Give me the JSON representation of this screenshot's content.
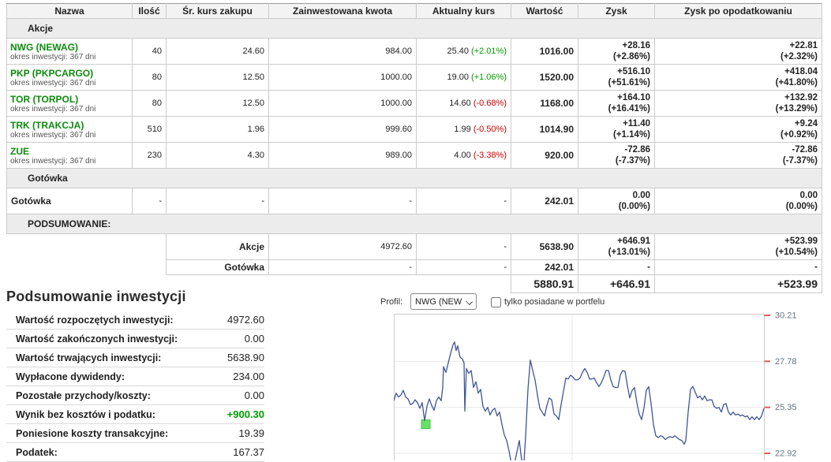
{
  "colors": {
    "up": "#009c00",
    "down": "#cc0000",
    "ticker": "#0d8c0d",
    "line": "#3f5694",
    "grid": "#e8e8e8",
    "plot_border": "#cccccc",
    "tick": "#e05b5b",
    "axis_label": "#66757f",
    "marker_fill": "#69e066",
    "marker_border": "#44c244"
  },
  "table": {
    "headers": [
      "Nazwa",
      "Ilość",
      "Śr. kurs zakupu",
      "Zainwestowana kwota",
      "Aktualny kurs",
      "Wartość",
      "Zysk",
      "Zysk po opodatkowaniu"
    ],
    "sections": {
      "akcje": "Akcje",
      "gotowka": "Gotówka",
      "podsumowanie": "PODSUMOWANIE:"
    },
    "rows": [
      {
        "ticker": "NWG (NEWAG)",
        "period": "okres inwestycji: 367 dni",
        "qty": "40",
        "avg": "24.60",
        "invested": "984.00",
        "kurs": "25.40",
        "kurs_chg": "(+2.01%)",
        "kurs_dir": "up",
        "value": "1016.00",
        "profit": "+28.16",
        "profit_pct": "(+2.86%)",
        "profit_dir": "up",
        "tax": "+22.81",
        "tax_pct": "(+2.32%)",
        "tax_dir": "up"
      },
      {
        "ticker": "PKP (PKPCARGO)",
        "period": "okres inwestycji: 367 dni",
        "qty": "80",
        "avg": "12.50",
        "invested": "1000.00",
        "kurs": "19.00",
        "kurs_chg": "(+1.06%)",
        "kurs_dir": "up",
        "value": "1520.00",
        "profit": "+516.10",
        "profit_pct": "(+51.61%)",
        "profit_dir": "up",
        "tax": "+418.04",
        "tax_pct": "(+41.80%)",
        "tax_dir": "up"
      },
      {
        "ticker": "TOR (TORPOL)",
        "period": "okres inwestycji: 367 dni",
        "qty": "80",
        "avg": "12.50",
        "invested": "1000.00",
        "kurs": "14.60",
        "kurs_chg": "(-0.68%)",
        "kurs_dir": "down",
        "value": "1168.00",
        "profit": "+164.10",
        "profit_pct": "(+16.41%)",
        "profit_dir": "up",
        "tax": "+132.92",
        "tax_pct": "(+13.29%)",
        "tax_dir": "up"
      },
      {
        "ticker": "TRK (TRAKCJA)",
        "period": "okres inwestycji: 367 dni",
        "qty": "510",
        "avg": "1.96",
        "invested": "999.60",
        "kurs": "1.99",
        "kurs_chg": "(-0.50%)",
        "kurs_dir": "down",
        "value": "1014.90",
        "profit": "+11.40",
        "profit_pct": "(+1.14%)",
        "profit_dir": "up",
        "tax": "+9.24",
        "tax_pct": "(+0.92%)",
        "tax_dir": "up"
      },
      {
        "ticker": "ZUE",
        "period": "okres inwestycji: 367 dni",
        "qty": "230",
        "avg": "4.30",
        "invested": "989.00",
        "kurs": "4.00",
        "kurs_chg": "(-3.38%)",
        "kurs_dir": "down",
        "value": "920.00",
        "profit": "-72.86",
        "profit_pct": "(-7.37%)",
        "profit_dir": "down",
        "tax": "-72.86",
        "tax_pct": "(-7.37%)",
        "tax_dir": "down"
      }
    ],
    "cash_row": {
      "name": "Gotówka",
      "qty": "-",
      "avg": "-",
      "invested": "-",
      "kurs": "-",
      "value": "242.01",
      "profit": "0.00",
      "profit_pct": "(0.00%)",
      "tax": "0.00",
      "tax_pct": "(0.00%)"
    },
    "summary_rows": [
      {
        "label": "Akcje",
        "invested": "4972.60",
        "kurs": "-",
        "value": "5638.90",
        "profit": "+646.91",
        "profit_pct": "(+13.01%)",
        "profit_dir": "up",
        "tax": "+523.99",
        "tax_pct": "(+10.54%)",
        "tax_dir": "up"
      },
      {
        "label": "Gotówka",
        "invested": "-",
        "kurs": "-",
        "value": "242.01",
        "profit": "-",
        "profit_pct": "",
        "profit_dir": "flat",
        "tax": "-",
        "tax_pct": "",
        "tax_dir": "flat"
      }
    ],
    "total_row": {
      "value": "5880.91",
      "profit": "+646.91",
      "tax": "+523.99"
    }
  },
  "summary_panel": {
    "title": "Podsumowanie inwestycji",
    "rows": [
      {
        "label": "Wartość rozpoczętych inwestycji:",
        "value": "4972.60",
        "green": false
      },
      {
        "label": "Wartość zakończonych inwestycji:",
        "value": "0.00",
        "green": false
      },
      {
        "label": "Wartość trwających inwestycji:",
        "value": "5638.90",
        "green": false
      },
      {
        "label": "Wypłacone dywidendy:",
        "value": "234.00",
        "green": false
      },
      {
        "label": "Pozostałe przychody/koszty:",
        "value": "0.00",
        "green": false
      },
      {
        "label": "Wynik bez kosztów i podatku:",
        "value": "+900.30",
        "green": true
      },
      {
        "label": "Poniesione koszty transakcyjne:",
        "value": "19.39",
        "green": false
      },
      {
        "label": "Podatek:",
        "value": "167.37",
        "green": false
      }
    ]
  },
  "chart_area": {
    "profil_label": "Profil:",
    "profil_value": "NWG (NEWA",
    "checkbox_label": "tylko posiadane w portfelu",
    "checkbox_checked": false
  },
  "chart_data": {
    "type": "line",
    "series_name": "NWG (NEWAG)",
    "y_ticks": [
      30.21,
      27.78,
      25.35,
      22.92
    ],
    "x_gridlines_frac": [
      0.482
    ],
    "grid": true,
    "legend": false,
    "marker": {
      "x_frac": 0.0864,
      "price": 24.46
    },
    "points": [
      [
        0.0,
        25.7
      ],
      [
        0.0064,
        26.1
      ],
      [
        0.0128,
        25.9
      ],
      [
        0.0192,
        26.0
      ],
      [
        0.0256,
        26.25
      ],
      [
        0.032,
        25.9
      ],
      [
        0.0384,
        25.8
      ],
      [
        0.0448,
        25.5
      ],
      [
        0.0512,
        25.55
      ],
      [
        0.0576,
        25.75
      ],
      [
        0.064,
        25.6
      ],
      [
        0.0704,
        25.3
      ],
      [
        0.0768,
        25.6
      ],
      [
        0.0832,
        24.65
      ],
      [
        0.0896,
        25.4
      ],
      [
        0.0959,
        25.8
      ],
      [
        0.1023,
        25.45
      ],
      [
        0.1087,
        25.2
      ],
      [
        0.1151,
        25.7
      ],
      [
        0.1215,
        25.9
      ],
      [
        0.1279,
        25.7
      ],
      [
        0.1322,
        26.4
      ],
      [
        0.1343,
        27.5
      ],
      [
        0.1407,
        27.2
      ],
      [
        0.1471,
        27.7
      ],
      [
        0.1535,
        28.2
      ],
      [
        0.1599,
        28.65
      ],
      [
        0.1642,
        28.8
      ],
      [
        0.1684,
        28.35
      ],
      [
        0.1727,
        28.6
      ],
      [
        0.1791,
        28.0
      ],
      [
        0.1855,
        27.9
      ],
      [
        0.1898,
        27.7
      ],
      [
        0.1919,
        25.15
      ],
      [
        0.1962,
        27.4
      ],
      [
        0.2026,
        27.15
      ],
      [
        0.2089,
        27.3
      ],
      [
        0.2153,
        26.4
      ],
      [
        0.2217,
        26.7
      ],
      [
        0.2281,
        26.1
      ],
      [
        0.2345,
        26.3
      ],
      [
        0.2409,
        25.4
      ],
      [
        0.2473,
        25.15
      ],
      [
        0.2537,
        25.35
      ],
      [
        0.2601,
        24.95
      ],
      [
        0.2665,
        25.2
      ],
      [
        0.2729,
        25.3
      ],
      [
        0.2793,
        24.9
      ],
      [
        0.2857,
        25.1
      ],
      [
        0.2921,
        24.45
      ],
      [
        0.2985,
        23.9
      ],
      [
        0.3049,
        23.6
      ],
      [
        0.3113,
        23.05
      ],
      [
        0.3155,
        22.6
      ],
      [
        0.3198,
        22.15
      ],
      [
        0.3262,
        22.4
      ],
      [
        0.3326,
        23.0
      ],
      [
        0.339,
        23.6
      ],
      [
        0.3433,
        22.9
      ],
      [
        0.3475,
        22.25
      ],
      [
        0.3518,
        22.5
      ],
      [
        0.3561,
        23.8
      ],
      [
        0.3625,
        26.3
      ],
      [
        0.3689,
        27.85
      ],
      [
        0.3753,
        27.3
      ],
      [
        0.3817,
        26.8
      ],
      [
        0.388,
        26.0
      ],
      [
        0.3944,
        25.3
      ],
      [
        0.4008,
        25.1
      ],
      [
        0.4072,
        24.9
      ],
      [
        0.4136,
        25.45
      ],
      [
        0.42,
        25.85
      ],
      [
        0.4264,
        25.75
      ],
      [
        0.4328,
        25.0
      ],
      [
        0.4392,
        24.9
      ],
      [
        0.4456,
        24.7
      ],
      [
        0.452,
        25.5
      ],
      [
        0.4584,
        26.2
      ],
      [
        0.4648,
        26.9
      ],
      [
        0.4712,
        26.85
      ],
      [
        0.4776,
        27.05
      ],
      [
        0.484,
        26.95
      ],
      [
        0.4904,
        26.8
      ],
      [
        0.4968,
        26.8
      ],
      [
        0.5032,
        26.9
      ],
      [
        0.5096,
        27.2
      ],
      [
        0.516,
        27.4
      ],
      [
        0.5224,
        27.2
      ],
      [
        0.5288,
        26.85
      ],
      [
        0.5352,
        26.85
      ],
      [
        0.5416,
        26.9
      ],
      [
        0.548,
        26.65
      ],
      [
        0.5544,
        26.45
      ],
      [
        0.5608,
        26.65
      ],
      [
        0.5672,
        26.95
      ],
      [
        0.5736,
        27.3
      ],
      [
        0.58,
        27.3
      ],
      [
        0.5864,
        26.8
      ],
      [
        0.5928,
        26.45
      ],
      [
        0.5992,
        26.4
      ],
      [
        0.6055,
        26.4
      ],
      [
        0.6119,
        27.05
      ],
      [
        0.6183,
        27.3
      ],
      [
        0.6247,
        27.25
      ],
      [
        0.6311,
        26.5
      ],
      [
        0.6375,
        25.85
      ],
      [
        0.6439,
        26.25
      ],
      [
        0.6503,
        26.4
      ],
      [
        0.6567,
        25.6
      ],
      [
        0.6631,
        25.0
      ],
      [
        0.6695,
        24.7
      ],
      [
        0.6759,
        25.3
      ],
      [
        0.6823,
        26.25
      ],
      [
        0.6887,
        26.45
      ],
      [
        0.6951,
        25.55
      ],
      [
        0.7015,
        24.45
      ],
      [
        0.7079,
        23.85
      ],
      [
        0.7143,
        23.75
      ],
      [
        0.7207,
        23.85
      ],
      [
        0.7271,
        23.8
      ],
      [
        0.7335,
        23.65
      ],
      [
        0.7399,
        23.75
      ],
      [
        0.7463,
        23.8
      ],
      [
        0.7527,
        23.75
      ],
      [
        0.7591,
        23.85
      ],
      [
        0.7655,
        23.75
      ],
      [
        0.7719,
        23.65
      ],
      [
        0.7783,
        23.6
      ],
      [
        0.7847,
        23.4
      ],
      [
        0.789,
        23.6
      ],
      [
        0.7953,
        25.1
      ],
      [
        0.8017,
        26.3
      ],
      [
        0.8081,
        26.45
      ],
      [
        0.8145,
        26.15
      ],
      [
        0.8209,
        25.85
      ],
      [
        0.8273,
        25.95
      ],
      [
        0.8337,
        25.75
      ],
      [
        0.8401,
        25.95
      ],
      [
        0.8465,
        25.7
      ],
      [
        0.8529,
        25.75
      ],
      [
        0.8593,
        25.75
      ],
      [
        0.8657,
        25.4
      ],
      [
        0.8721,
        25.3
      ],
      [
        0.8785,
        25.35
      ],
      [
        0.8849,
        25.1
      ],
      [
        0.8913,
        25.5
      ],
      [
        0.8977,
        25.55
      ],
      [
        0.9041,
        25.1
      ],
      [
        0.9105,
        24.95
      ],
      [
        0.9169,
        25.1
      ],
      [
        0.9233,
        24.95
      ],
      [
        0.9297,
        25.0
      ],
      [
        0.9361,
        24.9
      ],
      [
        0.9425,
        24.95
      ],
      [
        0.9488,
        24.85
      ],
      [
        0.9552,
        24.9
      ],
      [
        0.9616,
        24.7
      ],
      [
        0.968,
        24.85
      ],
      [
        0.9744,
        24.7
      ],
      [
        0.9808,
        24.85
      ],
      [
        0.9872,
        24.7
      ],
      [
        0.9936,
        24.9
      ],
      [
        1.0,
        25.3
      ]
    ]
  }
}
